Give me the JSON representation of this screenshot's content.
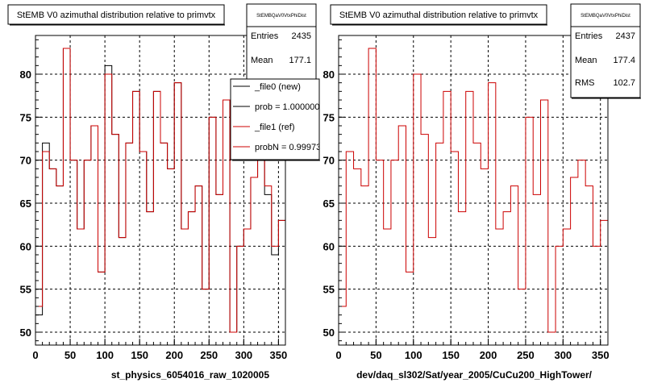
{
  "chart_data": [
    {
      "type": "histogram-step",
      "title": "StEMB V0 azimuthal distribution relative to primvtx",
      "xlabel": "st_physics_6054016_raw_1020005",
      "xlim": [
        0,
        360
      ],
      "ylim": [
        48.5,
        84.5
      ],
      "xticks": [
        0,
        50,
        100,
        150,
        200,
        250,
        300,
        350
      ],
      "yticks": [
        50,
        55,
        60,
        65,
        70,
        75,
        80
      ],
      "grid": true,
      "stats": {
        "name": "StEMBQaV0VtxPhiDist",
        "rows": [
          {
            "label": "Entries",
            "value": "2435"
          },
          {
            "label": "Mean",
            "value": "177.1"
          }
        ]
      },
      "legend": {
        "placement": "top-right",
        "entries": [
          {
            "label": "_file0 (new)",
            "color": "#000000"
          },
          {
            "label": "prob = 1.000000",
            "color": "#000000"
          },
          {
            "label": "_file1 (ref)",
            "color": "#cc0000"
          },
          {
            "label": "probN = 0.99973",
            "color": "#cc0000"
          }
        ]
      },
      "bin_width": 10,
      "series": [
        {
          "name": "_file0 (new)",
          "color": "#000000",
          "values": [
            52,
            72,
            69,
            67,
            83,
            70,
            62,
            70,
            74,
            57,
            81,
            73,
            61,
            72,
            78,
            71,
            64,
            78,
            72,
            69,
            79,
            62,
            64,
            67,
            55,
            75,
            66,
            77,
            50,
            60,
            62,
            68,
            70,
            66,
            59,
            63
          ]
        },
        {
          "name": "_file1 (ref)",
          "color": "#cc0000",
          "values": [
            53,
            71,
            69,
            67,
            83,
            70,
            62,
            70,
            74,
            57,
            80,
            73,
            61,
            72,
            78,
            71,
            64,
            78,
            72,
            69,
            79,
            62,
            64,
            67,
            55,
            75,
            66,
            77,
            50,
            60,
            62,
            68,
            70,
            67,
            60,
            63
          ]
        }
      ]
    },
    {
      "type": "histogram-step",
      "title": "StEMB V0 azimuthal distribution relative to primvtx",
      "xlabel": "dev/daq_sl302/Sat/year_2005/CuCu200_HighTower/",
      "xlim": [
        0,
        360
      ],
      "ylim": [
        48.5,
        84.5
      ],
      "xticks": [
        0,
        50,
        100,
        150,
        200,
        250,
        300,
        350
      ],
      "yticks": [
        50,
        55,
        60,
        65,
        70,
        75,
        80
      ],
      "grid": true,
      "stats": {
        "name": "StEMBQaV0VtxPhiDist",
        "rows": [
          {
            "label": "Entries",
            "value": "2437"
          },
          {
            "label": "Mean",
            "value": "177.4"
          },
          {
            "label": "RMS",
            "value": "102.7"
          }
        ]
      },
      "bin_width": 10,
      "series": [
        {
          "name": "",
          "color": "#cc0000",
          "values": [
            53,
            71,
            69,
            67,
            83,
            70,
            62,
            70,
            74,
            57,
            80,
            73,
            61,
            72,
            78,
            71,
            64,
            78,
            72,
            69,
            79,
            62,
            64,
            67,
            55,
            75,
            66,
            77,
            50,
            60,
            62,
            68,
            70,
            67,
            60,
            63
          ]
        }
      ]
    }
  ]
}
